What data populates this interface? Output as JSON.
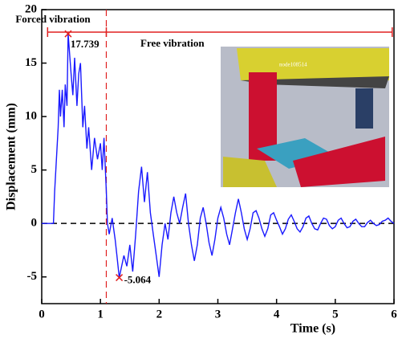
{
  "chart_data": {
    "type": "line",
    "xlabel": "Time (s)",
    "ylabel": "Displacement (mm)",
    "xlim": [
      0,
      6
    ],
    "ylim": [
      -7.5,
      20
    ],
    "xticks": [
      0,
      1,
      2,
      3,
      4,
      5,
      6
    ],
    "yticks": [
      -5,
      0,
      5,
      10,
      15,
      20
    ],
    "color": "#1a1aff",
    "x": [
      0,
      0.2,
      0.22,
      0.25,
      0.28,
      0.3,
      0.32,
      0.35,
      0.38,
      0.4,
      0.43,
      0.45,
      0.5,
      0.53,
      0.56,
      0.6,
      0.63,
      0.66,
      0.7,
      0.73,
      0.77,
      0.8,
      0.85,
      0.9,
      0.95,
      1.0,
      1.03,
      1.06,
      1.1,
      1.12,
      1.15,
      1.2,
      1.25,
      1.28,
      1.32,
      1.4,
      1.45,
      1.5,
      1.55,
      1.6,
      1.65,
      1.7,
      1.75,
      1.8,
      1.85,
      1.9,
      1.95,
      2.0,
      2.05,
      2.1,
      2.15,
      2.2,
      2.25,
      2.3,
      2.35,
      2.4,
      2.45,
      2.5,
      2.55,
      2.6,
      2.65,
      2.7,
      2.75,
      2.8,
      2.85,
      2.9,
      2.95,
      3.0,
      3.05,
      3.1,
      3.15,
      3.2,
      3.25,
      3.3,
      3.35,
      3.4,
      3.45,
      3.5,
      3.55,
      3.6,
      3.65,
      3.7,
      3.75,
      3.8,
      3.85,
      3.9,
      3.95,
      4.0,
      4.05,
      4.1,
      4.15,
      4.2,
      4.25,
      4.3,
      4.35,
      4.4,
      4.45,
      4.5,
      4.55,
      4.6,
      4.65,
      4.7,
      4.75,
      4.8,
      4.85,
      4.9,
      4.95,
      5.0,
      5.05,
      5.1,
      5.15,
      5.2,
      5.25,
      5.3,
      5.35,
      5.4,
      5.45,
      5.5,
      5.55,
      5.6,
      5.65,
      5.7,
      5.75,
      5.8,
      5.85,
      5.9,
      5.95,
      6.0
    ],
    "values": [
      0,
      0,
      3,
      6,
      9,
      12.5,
      10,
      12.5,
      9,
      13,
      11,
      17.739,
      14,
      12,
      15.5,
      11,
      14,
      15,
      9,
      11,
      7,
      9,
      5,
      8,
      6,
      7.5,
      5,
      8,
      3,
      0,
      -1,
      0.5,
      -1.5,
      -3,
      -5.064,
      -3,
      -4,
      -2,
      -4.5,
      -1,
      3,
      5.3,
      2,
      4.8,
      1,
      -1,
      -3,
      -5,
      -2,
      0,
      -1.5,
      1,
      2.5,
      1,
      0,
      1.5,
      2.8,
      0,
      -2,
      -3.5,
      -2,
      0.5,
      1.5,
      0,
      -1.8,
      -3,
      -1.5,
      0.5,
      1.5,
      0.5,
      -1,
      -2,
      -0.5,
      1,
      2.3,
      1,
      -0.5,
      -1.5,
      -0.5,
      1,
      1.2,
      0.5,
      -0.5,
      -1.2,
      -0.5,
      0.8,
      1,
      0.3,
      -0.3,
      -1,
      -0.5,
      0.4,
      0.8,
      0.2,
      -0.5,
      -0.8,
      -0.3,
      0.5,
      0.7,
      0,
      -0.5,
      -0.6,
      0,
      0.5,
      0.4,
      -0.2,
      -0.5,
      -0.3,
      0.3,
      0.5,
      0,
      -0.4,
      -0.3,
      0.2,
      0.4,
      0,
      -0.3,
      -0.3,
      0.1,
      0.3,
      0,
      -0.2,
      -0.1,
      0.2,
      0.3,
      0.5,
      0.2,
      0
    ],
    "zero_line": 0,
    "boundary_time": 1.1,
    "phase_span": [
      0.1,
      5.97
    ],
    "forced_label": "Forced vibration",
    "free_label": "Free vibration",
    "peak": {
      "x": 0.45,
      "value": 17.739
    },
    "trough": {
      "x": 1.32,
      "value": -5.064
    },
    "inset_label": "node108514"
  }
}
